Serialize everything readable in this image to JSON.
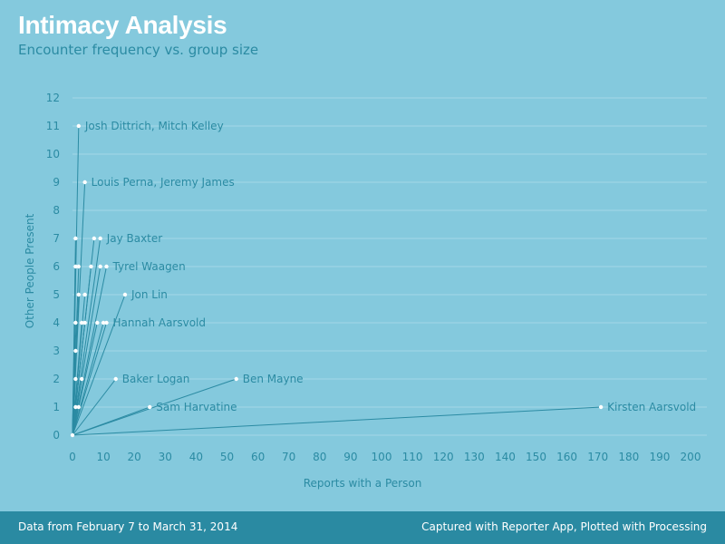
{
  "header": {
    "title": "Intimacy Analysis",
    "subtitle": "Encounter frequency vs. group size"
  },
  "footer": {
    "left": "Data from February 7 to March 31, 2014",
    "right": "Captured with Reporter App, Plotted with Processing"
  },
  "colors": {
    "background": "#84c9dd",
    "line": "#2b8ba3",
    "grid": "#a4d8e6",
    "point": "#ffffff",
    "text": "#2b8ba3",
    "footer": "#2a8aa2"
  },
  "chart_data": {
    "type": "scatter",
    "xlabel": "Reports with a Person",
    "ylabel": "Other People Present",
    "xlim": [
      0,
      200
    ],
    "ylim": [
      0,
      12
    ],
    "xticks": [
      0,
      10,
      20,
      30,
      40,
      50,
      60,
      70,
      80,
      90,
      100,
      110,
      120,
      130,
      140,
      150,
      160,
      170,
      180,
      190,
      200
    ],
    "yticks": [
      0,
      1,
      2,
      3,
      4,
      5,
      6,
      7,
      8,
      9,
      10,
      11,
      12
    ],
    "grid": "horizontal",
    "lines_from_origin": true,
    "points": [
      {
        "x": 2,
        "y": 11,
        "label": "Josh Dittrich, Mitch Kelley"
      },
      {
        "x": 4,
        "y": 9,
        "label": "Louis Perna, Jeremy James"
      },
      {
        "x": 9,
        "y": 7,
        "label": "Jay Baxter"
      },
      {
        "x": 11,
        "y": 6,
        "label": "Tyrel Waagen"
      },
      {
        "x": 17,
        "y": 5,
        "label": "Jon Lin"
      },
      {
        "x": 11,
        "y": 4,
        "label": "Hannah Aarsvold"
      },
      {
        "x": 14,
        "y": 2,
        "label": "Baker Logan"
      },
      {
        "x": 53,
        "y": 2,
        "label": "Ben Mayne"
      },
      {
        "x": 25,
        "y": 1,
        "label": "Sam Harvatine"
      },
      {
        "x": 171,
        "y": 1,
        "label": "Kirsten Aarsvold"
      },
      {
        "x": 1,
        "y": 7
      },
      {
        "x": 7,
        "y": 7
      },
      {
        "x": 1,
        "y": 6
      },
      {
        "x": 2,
        "y": 6
      },
      {
        "x": 6,
        "y": 6
      },
      {
        "x": 9,
        "y": 6
      },
      {
        "x": 2,
        "y": 5
      },
      {
        "x": 4,
        "y": 5
      },
      {
        "x": 1,
        "y": 4
      },
      {
        "x": 3,
        "y": 4
      },
      {
        "x": 4,
        "y": 4
      },
      {
        "x": 8,
        "y": 4
      },
      {
        "x": 10,
        "y": 4
      },
      {
        "x": 1,
        "y": 3
      },
      {
        "x": 1,
        "y": 2
      },
      {
        "x": 3,
        "y": 2
      },
      {
        "x": 1,
        "y": 1
      },
      {
        "x": 2,
        "y": 1
      }
    ]
  }
}
